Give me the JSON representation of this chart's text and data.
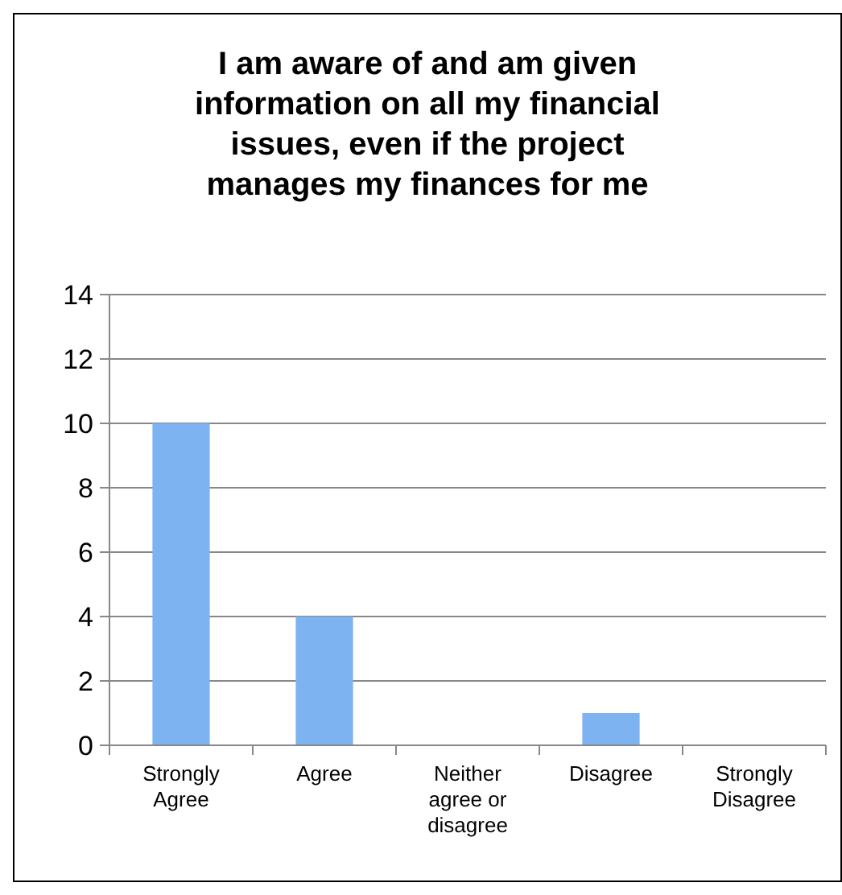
{
  "chart_data": {
    "type": "bar",
    "title": "I am aware of and am given information on all my financial issues, even if the project manages my finances for me",
    "categories": [
      "Strongly Agree",
      "Agree",
      "Neither agree or disagree",
      "Disagree",
      "Strongly Disagree"
    ],
    "values": [
      10,
      4,
      0,
      1,
      0
    ],
    "color": "#7db3f0",
    "ylim": [
      0,
      14
    ],
    "yticks": [
      0,
      2,
      4,
      6,
      8,
      10,
      12,
      14
    ],
    "grid": "y"
  }
}
